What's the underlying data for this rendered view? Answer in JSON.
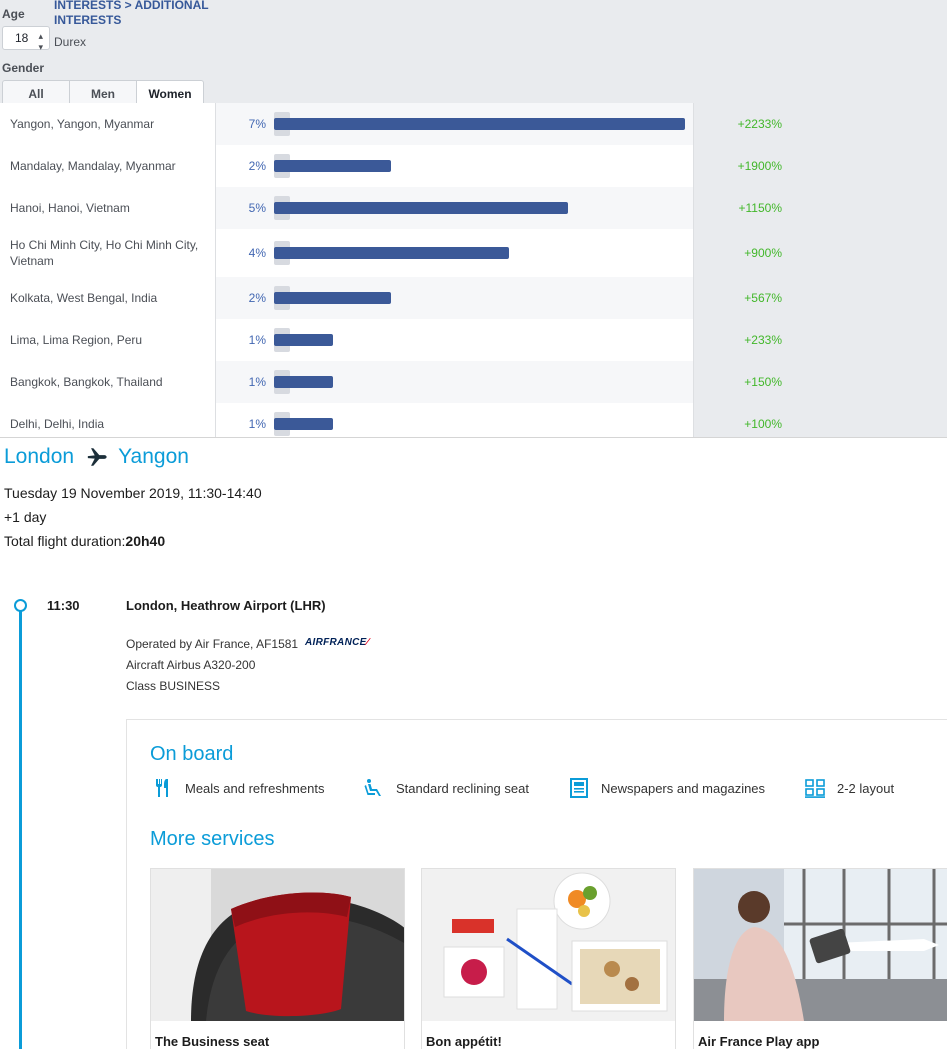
{
  "filters": {
    "age_label": "Age",
    "age_value": "18",
    "breadcrumb": "INTERESTS > ADDITIONAL INTERESTS",
    "interest": "Durex",
    "gender_label": "Gender",
    "gender_tabs": [
      "All",
      "Men",
      "Women"
    ],
    "active_gender": "Women"
  },
  "locations": [
    {
      "city": "Yangon, Yangon, Myanmar",
      "pct": "7%",
      "share": 7,
      "delta": "+2233%"
    },
    {
      "city": "Mandalay, Mandalay, Myanmar",
      "pct": "2%",
      "share": 2,
      "delta": "+1900%"
    },
    {
      "city": "Hanoi, Hanoi, Vietnam",
      "pct": "5%",
      "share": 5,
      "delta": "+1150%"
    },
    {
      "city": "Ho Chi Minh City, Ho Chi Minh City, Vietnam",
      "pct": "4%",
      "share": 4,
      "delta": "+900%"
    },
    {
      "city": "Kolkata, West Bengal, India",
      "pct": "2%",
      "share": 2,
      "delta": "+567%"
    },
    {
      "city": "Lima, Lima Region, Peru",
      "pct": "1%",
      "share": 1,
      "delta": "+233%"
    },
    {
      "city": "Bangkok, Bangkok, Thailand",
      "pct": "1%",
      "share": 1,
      "delta": "+150%"
    },
    {
      "city": "Delhi, Delhi, India",
      "pct": "1%",
      "share": 1,
      "delta": "+100%"
    }
  ],
  "flight": {
    "origin": "London",
    "destination": "Yangon",
    "date_line": "Tuesday 19 November 2019, 11:30-14:40",
    "day_offset": "+1 day",
    "duration_label": "Total flight duration:",
    "duration_value": "20h40",
    "segment": {
      "time": "11:30",
      "airport": "London, Heathrow Airport (LHR)",
      "operated_by": "Operated by Air France, AF1581",
      "airline_logo": "AIRFRANCE",
      "aircraft": "Aircraft Airbus A320-200",
      "class": "Class BUSINESS"
    },
    "on_board_title": "On board",
    "features": [
      {
        "icon": "fork-knife-icon",
        "label": "Meals and refreshments"
      },
      {
        "icon": "reclining-seat-icon",
        "label": "Standard reclining seat"
      },
      {
        "icon": "newspaper-icon",
        "label": "Newspapers and magazines"
      },
      {
        "icon": "seat-layout-icon",
        "label": "2-2 layout"
      }
    ],
    "more_services_title": "More services",
    "services": [
      {
        "label": "The Business seat"
      },
      {
        "label": "Bon appétit!"
      },
      {
        "label": "Air France Play app"
      }
    ]
  },
  "colors": {
    "fb_blue": "#3b5998",
    "link_blue": "#365899",
    "pct_blue": "#4267b2",
    "delta_green": "#42b72a",
    "af_blue": "#0b9cd8",
    "af_navy": "#002157",
    "af_red": "#e2001a"
  }
}
